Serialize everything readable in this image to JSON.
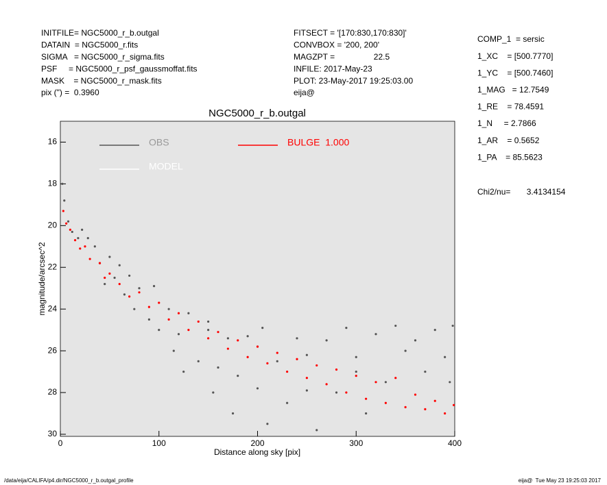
{
  "info_left": [
    "INITFILE= NGC5000_r_b.outgal",
    "DATAIN  = NGC5000_r.fits",
    "SIGMA   = NGC5000_r_sigma.fits",
    "PSF     = NGC5000_r_psf_gaussmoffat.fits",
    "MASK    = NGC5000_r_mask.fits",
    "pix (\") =  0.3960"
  ],
  "info_mid": [
    "FITSECT = '[170:830,170:830]'",
    "CONVBOX = '200, 200'",
    "MAGZPT =                 22.5",
    "INFILE: 2017-May-23",
    "PLOT: 23-May-2017 19:25:03.00",
    "eija@"
  ],
  "info_right": [
    "COMP_1  = sersic",
    "1_XC    = [500.7770]",
    "1_YC    = [500.7460]",
    "1_MAG   = 12.7549",
    "1_RE    = 78.4591",
    "1_N     = 2.7866",
    "1_AR    = 0.5652",
    "1_PA    = 85.5623"
  ],
  "chi2": "Chi2/nu=       3.4134154",
  "footer_left": "/data/eija/CALIFA/p4.dir/NGC5000_r_b.outgal_profile",
  "footer_right": "eija@  Tue May 23 19:25:03 2017",
  "chart_data": {
    "type": "scatter",
    "title": "NGC5000_r_b.outgal",
    "x_label": "Distance along sky [pix]",
    "y_label": "magnitude/arcsec^2",
    "xlim": [
      0,
      400
    ],
    "xticks": [
      0,
      100,
      200,
      300,
      400
    ],
    "ylim": [
      30.1,
      15.0
    ],
    "yticks": [
      16,
      18,
      20,
      22,
      24,
      26,
      28,
      30
    ],
    "series": [
      {
        "name": "OBS",
        "color": "#555555",
        "x": [
          2,
          4,
          8,
          12,
          18,
          22,
          28,
          35,
          40,
          45,
          50,
          55,
          60,
          65,
          70,
          75,
          80,
          90,
          95,
          100,
          110,
          115,
          120,
          125,
          130,
          140,
          150,
          155,
          160,
          170,
          175,
          180,
          190,
          200,
          205,
          210,
          220,
          230,
          240,
          250,
          260,
          270,
          280,
          290,
          300,
          310,
          320,
          330,
          340,
          350,
          360,
          370,
          380,
          390,
          398,
          395,
          200,
          150,
          250,
          300
        ],
        "values": [
          18.0,
          18.8,
          19.8,
          20.3,
          20.6,
          20.2,
          20.6,
          21.0,
          21.8,
          22.8,
          21.5,
          22.5,
          21.9,
          23.3,
          22.4,
          24.0,
          23.0,
          24.5,
          22.9,
          25.0,
          24.0,
          26.0,
          25.2,
          27.0,
          24.2,
          26.5,
          25.0,
          28.0,
          26.8,
          25.4,
          29.0,
          27.2,
          25.3,
          27.8,
          24.9,
          29.5,
          26.5,
          28.5,
          25.4,
          27.9,
          29.8,
          25.5,
          28.0,
          24.9,
          26.3,
          29.0,
          25.2,
          27.5,
          24.8,
          26.0,
          25.5,
          27.0,
          25.0,
          26.3,
          24.8,
          27.5,
          25.8,
          24.6,
          26.2,
          27.0
        ]
      },
      {
        "name": "MODEL",
        "color": "#ffffff",
        "x": [],
        "values": []
      },
      {
        "name": "BULGE  1.000",
        "color": "#ff0000",
        "x": [
          3,
          6,
          10,
          15,
          20,
          25,
          30,
          40,
          45,
          50,
          60,
          70,
          80,
          90,
          100,
          110,
          120,
          130,
          140,
          150,
          160,
          170,
          180,
          190,
          200,
          210,
          220,
          230,
          240,
          250,
          260,
          270,
          280,
          290,
          300,
          310,
          320,
          330,
          340,
          350,
          360,
          370,
          380,
          390,
          399
        ],
        "values": [
          19.3,
          19.9,
          20.2,
          20.7,
          21.1,
          21.0,
          21.6,
          21.8,
          22.5,
          22.3,
          22.8,
          23.4,
          23.2,
          23.9,
          23.7,
          24.5,
          24.2,
          25.0,
          24.6,
          25.4,
          25.1,
          25.9,
          25.5,
          26.3,
          25.8,
          26.6,
          26.1,
          27.0,
          26.4,
          27.3,
          26.7,
          27.6,
          26.9,
          28.0,
          27.2,
          28.3,
          27.5,
          28.5,
          27.3,
          28.7,
          28.1,
          28.8,
          28.4,
          29.0,
          28.6
        ]
      }
    ]
  }
}
